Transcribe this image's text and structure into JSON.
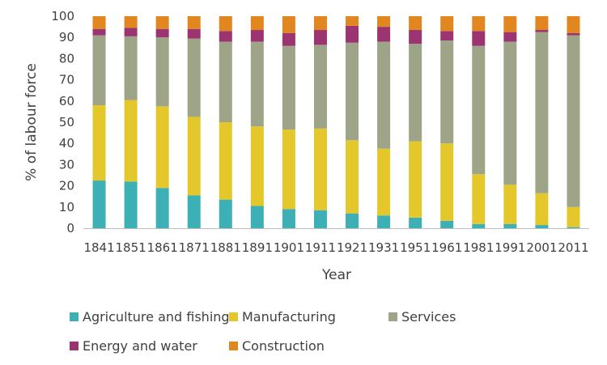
{
  "chart_data": {
    "type": "bar",
    "stacked": true,
    "title": "",
    "xlabel": "Year",
    "ylabel": "% of labour  force",
    "ylim": [
      0,
      100
    ],
    "yticks": [
      0,
      10,
      20,
      30,
      40,
      50,
      60,
      70,
      80,
      90,
      100
    ],
    "grid": false,
    "legend_position": "bottom",
    "categories": [
      "1841",
      "1851",
      "1861",
      "1871",
      "1881",
      "1891",
      "1901",
      "1911",
      "1921",
      "1931",
      "1951",
      "1961",
      "1981",
      "1991",
      "2001",
      "2011"
    ],
    "series": [
      {
        "name": "Agriculture and fishing",
        "color": "#3CB0B5",
        "values": [
          22.5,
          22,
          19,
          15.5,
          13.5,
          10.5,
          9,
          8.5,
          7,
          6,
          5,
          3.5,
          2,
          2,
          1.5,
          0.5
        ]
      },
      {
        "name": "Manufacturing",
        "color": "#E4C82B",
        "values": [
          35.5,
          38.5,
          38.5,
          37,
          36.5,
          37.5,
          37.5,
          38.5,
          34.5,
          31.5,
          36,
          36.5,
          23.5,
          18.5,
          15,
          9.5
        ]
      },
      {
        "name": "Services",
        "color": "#9EA488",
        "values": [
          33,
          30,
          32.5,
          37,
          38,
          40,
          39.5,
          39.5,
          46,
          50.5,
          46,
          48.5,
          60.5,
          67.5,
          76,
          81
        ]
      },
      {
        "name": "Energy and water",
        "color": "#9B3470",
        "values": [
          3,
          4,
          4,
          4.5,
          5,
          5.5,
          6,
          7,
          8,
          7,
          6.5,
          4.5,
          7,
          4.5,
          1,
          1
        ]
      },
      {
        "name": "Construction",
        "color": "#E2861F",
        "values": [
          6,
          5.5,
          6,
          6,
          7,
          6.5,
          8,
          6.5,
          4.5,
          5,
          6.5,
          7,
          7,
          7.5,
          6.5,
          8
        ]
      }
    ]
  }
}
